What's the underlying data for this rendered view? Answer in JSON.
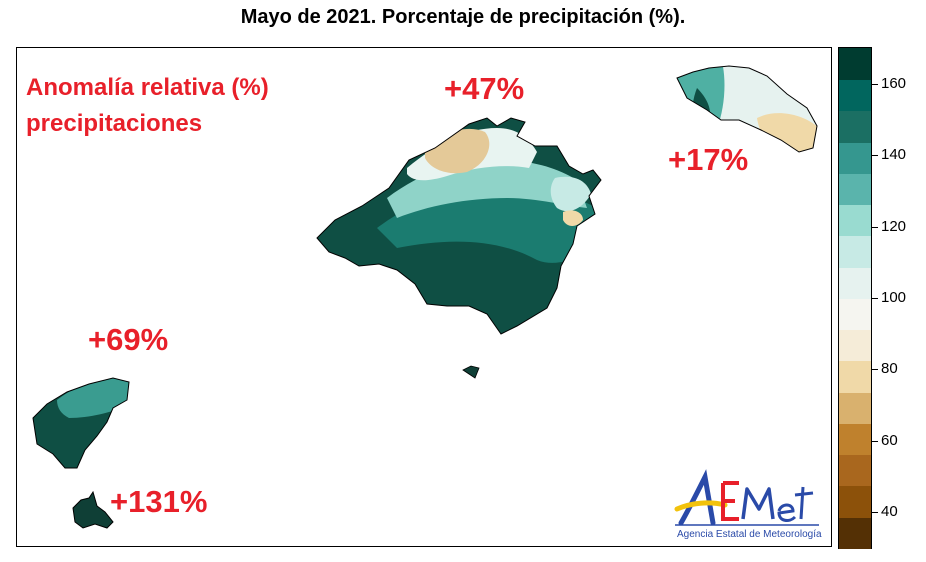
{
  "title": "Mayo de 2021. Porcentaje de precipitación (%).",
  "annotation": {
    "line1": "Anomalía relativa (%)",
    "line2": "precipitaciones"
  },
  "islands": [
    {
      "label": "+47%",
      "anomaly_pct": 47
    },
    {
      "label": "+17%",
      "anomaly_pct": 17
    },
    {
      "label": "+69%",
      "anomaly_pct": 69
    },
    {
      "label": "+131%",
      "anomaly_pct": 131
    }
  ],
  "logo": {
    "wordmark": "AEMet",
    "subtitle": "Agencia Estatal de Meteorología"
  },
  "legend": {
    "min": 30,
    "max": 170,
    "step": 10,
    "ticks": [
      "40",
      "60",
      "80",
      "100",
      "120",
      "140",
      "160"
    ],
    "colors": [
      "#543005",
      "#8c510a",
      "#a9671e",
      "#bf812d",
      "#d9b16e",
      "#f0d9a8",
      "#f5ecd8",
      "#f5f5f0",
      "#e6f2ef",
      "#c7eae5",
      "#99dbd0",
      "#5ab4ac",
      "#35978f",
      "#1b6f63",
      "#01665e",
      "#003c30"
    ]
  },
  "colors": {
    "annotation": "#e8202a",
    "title": "#000000"
  }
}
